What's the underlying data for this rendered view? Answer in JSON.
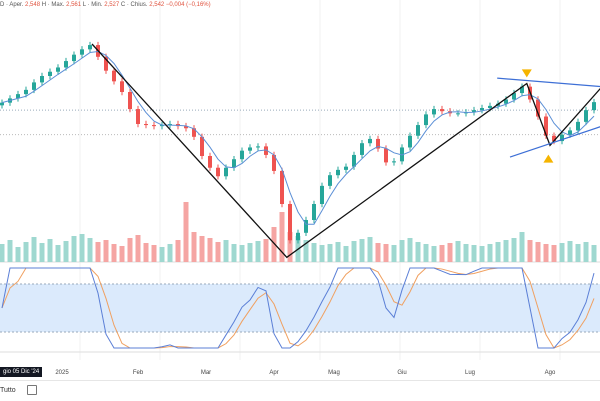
{
  "header": {
    "symbol_suffix": "D",
    "open_label": "· Aper.",
    "open": "2,548",
    "high_label": "H · Max.",
    "high": "2,561",
    "low_label": "L · Min.",
    "low": "2,527",
    "close_label": "C · Chius.",
    "close": "2,542",
    "change": "−0,004 (−0,16%)"
  },
  "crosshair_date": "gio 05 Dic '24",
  "bottom_bar": {
    "range_label": "Tutto"
  },
  "colors": {
    "up": "#26a69a",
    "down": "#ef5350",
    "ma": "#5b8fd6",
    "trend": "#111111",
    "channel": "#3d6fd6",
    "arrow": "#f5b400",
    "k": "#5b7fd6",
    "d": "#f0a060",
    "band": "#dbeafc"
  },
  "chart_data": {
    "type": "candlestick",
    "x_month_labels": [
      {
        "label": "2025",
        "index": 7.5
      },
      {
        "label": "Feb",
        "index": 17
      },
      {
        "label": "Mar",
        "index": 25.5
      },
      {
        "label": "Apr",
        "index": 34
      },
      {
        "label": "Mag",
        "index": 41.5
      },
      {
        "label": "Giu",
        "index": 50
      },
      {
        "label": "Lug",
        "index": 58.5
      },
      {
        "label": "Ago",
        "index": 68.5
      }
    ],
    "closes": [
      2.54,
      2.556,
      2.572,
      2.588,
      2.616,
      2.64,
      2.656,
      2.672,
      2.696,
      2.72,
      2.74,
      2.756,
      2.712,
      2.66,
      2.62,
      2.58,
      2.516,
      2.46,
      2.456,
      2.452,
      2.456,
      2.46,
      2.452,
      2.444,
      2.412,
      2.34,
      2.296,
      2.264,
      2.296,
      2.328,
      2.36,
      2.372,
      2.376,
      2.344,
      2.284,
      2.16,
      2.024,
      2.052,
      2.1,
      2.16,
      2.228,
      2.268,
      2.288,
      2.3,
      2.344,
      2.388,
      2.404,
      2.368,
      2.316,
      2.32,
      2.372,
      2.416,
      2.456,
      2.496,
      2.516,
      2.508,
      2.5,
      2.5,
      2.504,
      2.512,
      2.52,
      2.528,
      2.536,
      2.552,
      2.576,
      2.6,
      2.552,
      2.488,
      2.416,
      2.396,
      2.42,
      2.436,
      2.468,
      2.512,
      2.542
    ],
    "volumes": [
      18,
      22,
      15,
      20,
      25,
      19,
      23,
      17,
      21,
      26,
      28,
      24,
      20,
      22,
      18,
      16,
      24,
      27,
      19,
      17,
      15,
      18,
      22,
      60,
      30,
      26,
      24,
      20,
      22,
      18,
      17,
      19,
      21,
      23,
      35,
      50,
      30,
      26,
      22,
      19,
      17,
      18,
      20,
      16,
      21,
      23,
      25,
      19,
      18,
      17,
      22,
      24,
      20,
      18,
      16,
      17,
      19,
      21,
      18,
      17,
      16,
      18,
      20,
      22,
      24,
      30,
      22,
      20,
      18,
      17,
      19,
      21,
      18,
      20,
      17
    ],
    "price_ylim": [
      1.95,
      2.85
    ],
    "reference_levels": [
      2.512,
      2.42
    ],
    "trendline": [
      [
        11.25,
        2.76
      ],
      [
        35.6,
        1.96
      ],
      [
        65.6,
        2.612
      ],
      [
        68.5,
        2.38
      ],
      [
        75,
        2.6
      ]
    ],
    "channel_upper": [
      [
        61.9,
        2.632
      ],
      [
        75,
        2.6
      ]
    ],
    "channel_lower": [
      [
        63.5,
        2.336
      ],
      [
        75,
        2.452
      ]
    ],
    "arrows": [
      {
        "index": 65.6,
        "value": 2.65,
        "dir": "down"
      },
      {
        "index": 68.3,
        "value": 2.33,
        "dir": "up"
      }
    ],
    "oscillator": {
      "name": "Stochastic",
      "ylim": [
        0,
        100
      ],
      "band": [
        20,
        80
      ],
      "period": 8
    }
  }
}
